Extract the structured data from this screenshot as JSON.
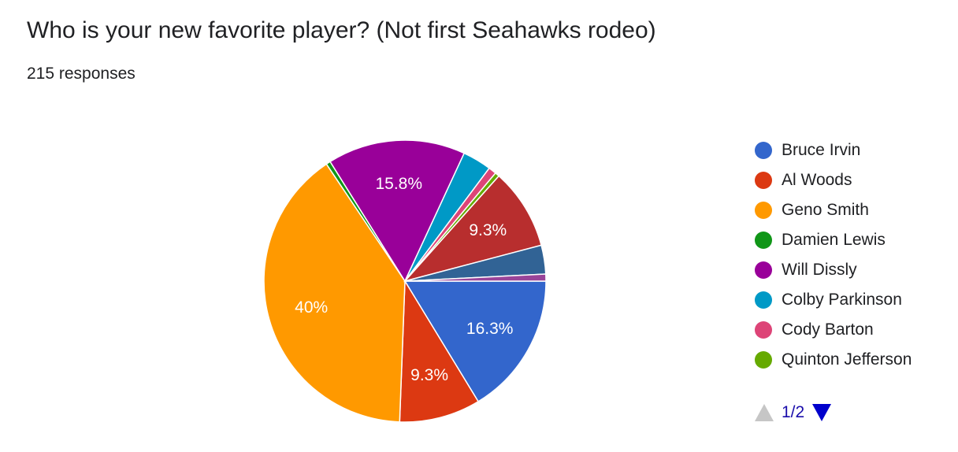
{
  "header": {
    "title": "Who is your new favorite player? (Not first Seahawks rodeo)",
    "responses": "215 responses"
  },
  "chart_data": {
    "type": "pie",
    "slices": [
      {
        "name": "Bruce Irvin",
        "value": 16.3,
        "label": "16.3%",
        "color": "#3366cc"
      },
      {
        "name": "Al Woods",
        "value": 9.3,
        "label": "9.3%",
        "color": "#dc3912"
      },
      {
        "name": "Geno Smith",
        "value": 40,
        "label": "40%",
        "color": "#ff9900"
      },
      {
        "name": "Damien Lewis",
        "value": 0.5,
        "label": "",
        "color": "#109618"
      },
      {
        "name": "Will Dissly",
        "value": 15.8,
        "label": "15.8%",
        "color": "#990099"
      },
      {
        "name": "Colby Parkinson",
        "value": 3.3,
        "label": "",
        "color": "#0099c6"
      },
      {
        "name": "Cody Barton",
        "value": 0.9,
        "label": "",
        "color": "#dd4477"
      },
      {
        "name": "Quinton Jefferson",
        "value": 0.5,
        "label": "",
        "color": "#66aa00"
      },
      {
        "name": "",
        "value": 9.3,
        "label": "9.3%",
        "color": "#b82e2e"
      },
      {
        "name": "",
        "value": 3.3,
        "label": "",
        "color": "#316395"
      },
      {
        "name": "",
        "value": 0.8,
        "label": "",
        "color": "#994499"
      }
    ],
    "legend_placement": "right"
  },
  "legend": {
    "items": [
      {
        "label": "Bruce Irvin",
        "color": "#3366cc"
      },
      {
        "label": "Al Woods",
        "color": "#dc3912"
      },
      {
        "label": "Geno Smith",
        "color": "#ff9900"
      },
      {
        "label": "Damien Lewis",
        "color": "#109618"
      },
      {
        "label": "Will Dissly",
        "color": "#990099"
      },
      {
        "label": "Colby Parkinson",
        "color": "#0099c6"
      },
      {
        "label": "Cody Barton",
        "color": "#dd4477"
      },
      {
        "label": "Quinton Jefferson",
        "color": "#66aa00"
      }
    ],
    "page": "1/2",
    "up_icon": "triangle-up-icon",
    "down_icon": "triangle-down-icon"
  }
}
